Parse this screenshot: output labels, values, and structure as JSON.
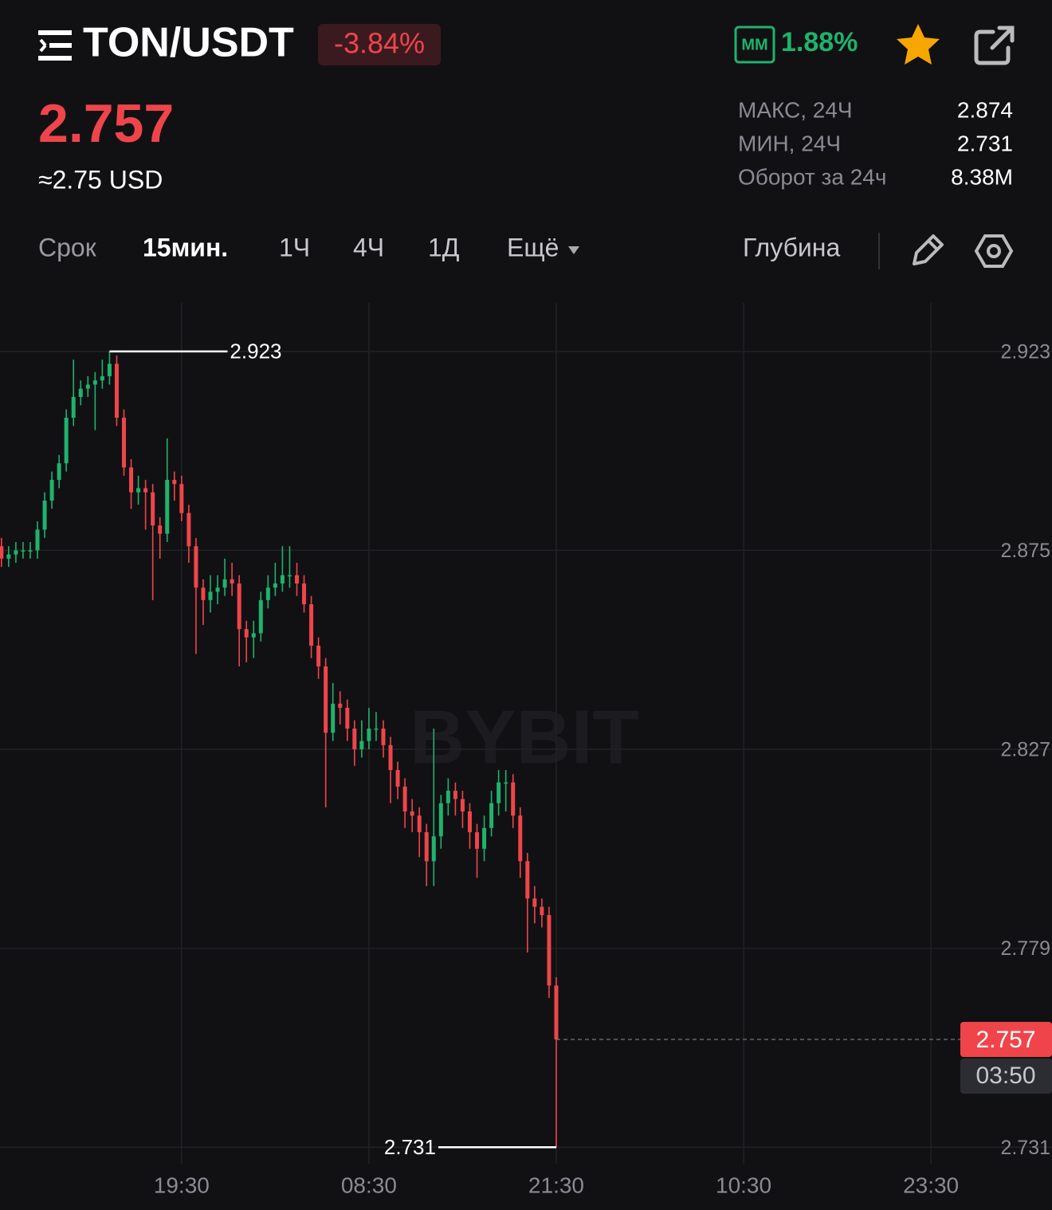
{
  "header": {
    "symbol": "TON/USDT",
    "change": "-3.84%",
    "mm_label": "MM",
    "mm_value": "1.88%",
    "price": "2.757",
    "price_usd": "≈2.75 USD"
  },
  "stats": [
    {
      "label": "МАКС, 24Ч",
      "value": "2.874"
    },
    {
      "label": "МИН, 24Ч",
      "value": "2.731"
    },
    {
      "label": "Оборот за 24ч",
      "value": "8.38M"
    }
  ],
  "tabs": [
    "Срок",
    "15мин.",
    "1Ч",
    "4Ч",
    "1Д",
    "Ещё"
  ],
  "depth": "Глубина",
  "chart_data": {
    "type": "candlestick",
    "watermark": "BYBIT",
    "x": [
      7,
      7.5,
      8,
      8.5,
      9,
      9.5,
      10,
      10.5,
      11,
      11.5,
      12,
      12.5,
      13,
      13.5,
      14,
      14.5,
      15,
      15.5,
      16,
      16.5,
      17,
      17.5,
      18,
      18.5,
      19,
      19.5,
      20,
      20.5,
      21,
      21.5,
      22,
      22.5,
      23,
      23.5,
      24,
      24.5,
      25,
      25.5,
      26,
      26.5,
      27,
      27.5,
      28,
      28.5,
      29,
      29.5,
      30,
      30.5,
      31,
      31.5,
      32,
      32.5,
      33,
      33.5,
      34,
      34.5,
      35,
      35.5,
      36,
      36.5,
      37,
      37.5,
      38,
      38.5,
      39,
      39.5,
      40,
      40.5,
      41,
      41.5,
      42,
      42.5,
      43,
      43.5,
      44,
      44.5,
      45,
      45.5
    ],
    "open": [
      2.876,
      2.873,
      2.874,
      2.875,
      2.875,
      2.875,
      2.88,
      2.887,
      2.892,
      2.896,
      2.907,
      2.912,
      2.914,
      2.915,
      2.916,
      2.917,
      2.92,
      2.907,
      2.895,
      2.889,
      2.89,
      2.889,
      2.881,
      2.879,
      2.892,
      2.891,
      2.884,
      2.876,
      2.866,
      2.863,
      2.865,
      2.866,
      2.868,
      2.867,
      2.856,
      2.854,
      2.855,
      2.863,
      2.866,
      2.867,
      2.869,
      2.869,
      2.867,
      2.862,
      2.852,
      2.847,
      2.831,
      2.838,
      2.837,
      2.832,
      2.827,
      2.829,
      2.832,
      2.832,
      2.828,
      2.822,
      2.818,
      2.812,
      2.811,
      2.807,
      2.8,
      2.806,
      2.814,
      2.817,
      2.815,
      2.812,
      2.807,
      2.803,
      2.808,
      2.814,
      2.819,
      2.819,
      2.811,
      2.8,
      2.791,
      2.789,
      2.787,
      2.77
    ],
    "high": [
      2.878,
      2.876,
      2.877,
      2.877,
      2.877,
      2.882,
      2.889,
      2.894,
      2.898,
      2.909,
      2.921,
      2.916,
      2.917,
      2.918,
      2.921,
      2.923,
      2.922,
      2.909,
      2.897,
      2.893,
      2.892,
      2.891,
      2.883,
      2.902,
      2.894,
      2.893,
      2.886,
      2.878,
      2.868,
      2.869,
      2.869,
      2.873,
      2.872,
      2.869,
      2.858,
      2.858,
      2.865,
      2.869,
      2.872,
      2.876,
      2.876,
      2.872,
      2.869,
      2.864,
      2.854,
      2.849,
      2.843,
      2.841,
      2.839,
      2.834,
      2.834,
      2.837,
      2.836,
      2.834,
      2.83,
      2.824,
      2.82,
      2.815,
      2.813,
      2.809,
      2.832,
      2.816,
      2.82,
      2.819,
      2.817,
      2.814,
      2.809,
      2.811,
      2.817,
      2.822,
      2.822,
      2.821,
      2.813,
      2.802,
      2.794,
      2.791,
      2.789,
      2.772
    ],
    "low": [
      2.871,
      2.871,
      2.872,
      2.873,
      2.873,
      2.873,
      2.878,
      2.885,
      2.89,
      2.894,
      2.905,
      2.91,
      2.912,
      2.904,
      2.914,
      2.915,
      2.905,
      2.893,
      2.885,
      2.886,
      2.88,
      2.863,
      2.873,
      2.877,
      2.887,
      2.882,
      2.872,
      2.85,
      2.857,
      2.86,
      2.862,
      2.864,
      2.864,
      2.847,
      2.848,
      2.849,
      2.853,
      2.861,
      2.864,
      2.865,
      2.866,
      2.864,
      2.86,
      2.849,
      2.844,
      2.813,
      2.829,
      2.833,
      2.829,
      2.823,
      2.825,
      2.827,
      2.829,
      2.825,
      2.814,
      2.815,
      2.808,
      2.807,
      2.801,
      2.794,
      2.794,
      2.803,
      2.811,
      2.811,
      2.808,
      2.803,
      2.796,
      2.8,
      2.806,
      2.811,
      2.812,
      2.808,
      2.796,
      2.778,
      2.785,
      2.784,
      2.767,
      2.731
    ],
    "close": [
      2.873,
      2.874,
      2.875,
      2.875,
      2.875,
      2.88,
      2.887,
      2.892,
      2.896,
      2.907,
      2.912,
      2.914,
      2.915,
      2.916,
      2.917,
      2.92,
      2.907,
      2.895,
      2.889,
      2.89,
      2.889,
      2.881,
      2.879,
      2.892,
      2.891,
      2.884,
      2.876,
      2.866,
      2.863,
      2.865,
      2.866,
      2.868,
      2.867,
      2.856,
      2.854,
      2.855,
      2.863,
      2.866,
      2.867,
      2.869,
      2.869,
      2.867,
      2.862,
      2.852,
      2.847,
      2.831,
      2.838,
      2.837,
      2.832,
      2.827,
      2.829,
      2.832,
      2.832,
      2.828,
      2.822,
      2.818,
      2.812,
      2.811,
      2.807,
      2.8,
      2.806,
      2.814,
      2.817,
      2.815,
      2.812,
      2.807,
      2.803,
      2.808,
      2.814,
      2.819,
      2.819,
      2.811,
      2.8,
      2.791,
      2.789,
      2.787,
      2.77,
      2.757
    ],
    "up_color": "#20b26c",
    "down_color": "#ef454a",
    "xlim": [
      6.9,
      79.9
    ],
    "xticks": [
      {
        "value": 19.5,
        "label": "19:30"
      },
      {
        "value": 32.5,
        "label": "08:30"
      },
      {
        "value": 45.5,
        "label": "21:30"
      },
      {
        "value": 58.5,
        "label": "10:30"
      },
      {
        "value": 71.5,
        "label": "23:30"
      }
    ],
    "ylim": [
      2.727,
      2.9347
    ],
    "yticks": [
      2.923,
      2.875,
      2.827,
      2.779,
      2.731
    ],
    "grid": true,
    "max_marker": 2.923,
    "min_marker": 2.731,
    "last_price": 2.757,
    "countdown": "03:50"
  }
}
